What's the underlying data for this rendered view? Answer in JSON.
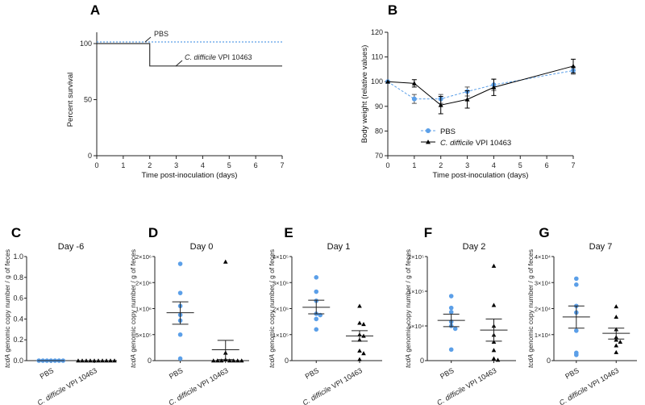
{
  "colors": {
    "pbs": "#5b9fe8",
    "cdiff": "#000000"
  },
  "chart_data": [
    {
      "panel": "A",
      "type": "line",
      "subtype": "survival-step",
      "xlabel": "Time post-inoculation (days)",
      "ylabel": "Percent survival",
      "xlim": [
        0,
        7
      ],
      "ylim": [
        0,
        100
      ],
      "xticks": [
        0,
        1,
        2,
        3,
        4,
        5,
        6,
        7
      ],
      "yticks": [
        0,
        50,
        100
      ],
      "series": [
        {
          "name": "PBS",
          "style": "dotted",
          "color": "#5b9fe8",
          "x": [
            0,
            7
          ],
          "y": [
            100,
            100
          ]
        },
        {
          "name": "C. difficile VPI 10463",
          "style": "solid",
          "color": "#000000",
          "x": [
            0,
            2,
            2,
            7
          ],
          "y": [
            100,
            100,
            80,
            80
          ]
        }
      ],
      "annotations": [
        {
          "text": "PBS"
        },
        {
          "text_italic": "C. difficile",
          "text": " VPI 10463"
        }
      ]
    },
    {
      "panel": "B",
      "type": "line",
      "xlabel": "Time post-inoculation (days)",
      "ylabel": "Body weight (relative values)",
      "xlim": [
        0,
        7
      ],
      "ylim": [
        70,
        120
      ],
      "xticks": [
        0,
        1,
        2,
        3,
        4,
        5,
        6,
        7
      ],
      "yticks": [
        70,
        80,
        90,
        100,
        110,
        120
      ],
      "legend": "bottom-center",
      "series": [
        {
          "name": "PBS",
          "marker": "circle",
          "style": "dashed",
          "color": "#5b9fe8",
          "x": [
            0,
            1,
            2,
            3,
            4,
            7
          ],
          "y": [
            100,
            93,
            93,
            96,
            98.7,
            104.5
          ],
          "err": [
            0,
            1.8,
            1.8,
            1.8,
            2.3,
            1.5
          ]
        },
        {
          "name_italic": "C. difficile",
          "name": " VPI 10463",
          "marker": "triangle",
          "style": "solid",
          "color": "#000000",
          "x": [
            0,
            1,
            2,
            3,
            4,
            7
          ],
          "y": [
            100,
            99.3,
            90.5,
            92.8,
            97.7,
            106.3
          ],
          "err": [
            0,
            1.5,
            3.5,
            3.5,
            3.3,
            2.8
          ]
        }
      ]
    },
    {
      "panel": "C",
      "type": "scatter",
      "title": "Day -6",
      "ylabel_italic": "tcdA",
      "ylabel": " genomic copy number / g of feces",
      "categories": [
        "PBS",
        "C. difficile VPI 10463"
      ],
      "yticks": [
        0,
        0.2,
        0.4,
        0.6,
        0.8,
        1.0
      ],
      "ytick_labels": [
        "0.0",
        "0.2",
        "0.4",
        "0.6",
        "0.8",
        "1.0"
      ],
      "groups": [
        {
          "values": [
            0,
            0,
            0,
            0,
            0,
            0,
            0
          ],
          "mean": 0,
          "sem": [
            0,
            0
          ]
        },
        {
          "values": [
            0,
            0,
            0,
            0,
            0,
            0,
            0,
            0,
            0,
            0
          ],
          "mean": 0,
          "sem": [
            0,
            0
          ]
        }
      ]
    },
    {
      "panel": "D",
      "type": "scatter",
      "title": "Day 0",
      "ylabel_italic": "tcdA",
      "ylabel": " genomic copy number / g of feces",
      "categories": [
        "PBS",
        "C. difficile VPI 10463"
      ],
      "yticks": [
        0,
        500000,
        1000000,
        1500000,
        2000000
      ],
      "ytick_labels": [
        "0",
        "5×10⁵",
        "1×10⁶",
        "2×10⁶",
        "2×10⁶"
      ],
      "groups": [
        {
          "values": [
            1860000,
            1300000,
            1050000,
            880000,
            770000,
            500000,
            40000
          ],
          "mean": 920000,
          "sem": [
            700000,
            1130000
          ]
        },
        {
          "values": [
            1900000,
            150000,
            20000,
            0,
            0,
            0,
            0,
            0,
            0,
            0
          ],
          "mean": 210000,
          "sem": [
            20000,
            390000
          ]
        }
      ]
    },
    {
      "panel": "E",
      "type": "scatter",
      "title": "Day 1",
      "ylabel_italic": "tcdA",
      "ylabel": " genomic copy number / g of feces",
      "categories": [
        "PBS",
        "C. difficile VPI 10463"
      ],
      "yticks": [
        0,
        100000,
        200000,
        300000,
        400000
      ],
      "ytick_labels": [
        "0",
        "1×10⁵",
        "2×10⁵",
        "3×10⁵",
        "4×10⁵"
      ],
      "groups": [
        {
          "values": [
            320000,
            265000,
            230000,
            180000,
            175000,
            160000,
            120000
          ],
          "mean": 205000,
          "sem": [
            180000,
            232000
          ]
        },
        {
          "values": [
            210000,
            145000,
            140000,
            100000,
            95000,
            80000,
            38000,
            28000,
            5000
          ],
          "mean": 95000,
          "sem": [
            75000,
            115000
          ]
        }
      ]
    },
    {
      "panel": "F",
      "type": "scatter",
      "title": "Day 2",
      "ylabel_italic": "tcdA",
      "ylabel": " genomic copy number / g of feces",
      "categories": [
        "PBS",
        "C. difficile VPI 10463"
      ],
      "yticks": [
        0,
        50000,
        100000,
        200000
      ],
      "ytick_labels": [
        "0",
        "5×10⁴",
        "1×10⁵",
        "2×10⁵"
      ],
      "groups": [
        {
          "values": [
            93000,
            76000,
            70000,
            56000,
            50000,
            46000,
            16000
          ],
          "mean": 58000,
          "sem": [
            49000,
            67000
          ]
        },
        {
          "values": [
            173000,
            80000,
            50000,
            37000,
            27000,
            15000,
            3000,
            1000
          ],
          "mean": 44000,
          "sem": [
            28000,
            60000
          ]
        }
      ]
    },
    {
      "panel": "G",
      "type": "scatter",
      "title": "Day 7",
      "ylabel_italic": "tcdA",
      "ylabel": " genomic copy number / g of feces",
      "categories": [
        "PBS",
        "C. difficile VPI 10463"
      ],
      "yticks": [
        0,
        10000,
        20000,
        30000,
        40000
      ],
      "ytick_labels": [
        "0",
        "1×10⁴",
        "2×10⁴",
        "3×10⁴",
        "4×10⁴"
      ],
      "groups": [
        {
          "values": [
            31500,
            29200,
            21000,
            18500,
            11500,
            3000,
            2200
          ],
          "mean": 16800,
          "sem": [
            12500,
            21000
          ]
        },
        {
          "values": [
            20800,
            16800,
            12000,
            9000,
            8000,
            7200,
            5800,
            3200
          ],
          "mean": 10500,
          "sem": [
            8300,
            12500
          ]
        }
      ]
    }
  ]
}
